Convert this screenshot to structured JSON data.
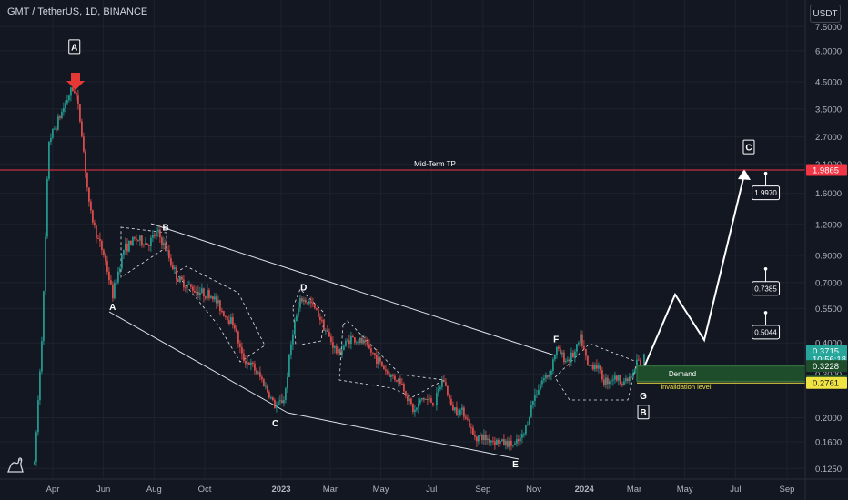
{
  "header": {
    "symbol_title": "GMT / TetherUS, 1D, BINANCE",
    "currency": "USDT"
  },
  "colors": {
    "background": "#131722",
    "up_candle": "#26a69a",
    "down_candle": "#ef5350",
    "grid": "#1e222d",
    "axis_text": "#b2b5be",
    "tp_line": "#f23645",
    "white": "#ffffff",
    "demand_zone": "#1e4d2b",
    "invalidation": "#f0e442"
  },
  "chart_data": {
    "type": "candlestick",
    "price_scale": "log",
    "ylim": [
      0.12,
      8.5
    ],
    "y_ticks": [
      "7.5000",
      "6.0000",
      "4.5000",
      "3.5000",
      "2.7000",
      "2.1000",
      "1.6000",
      "1.2000",
      "0.9000",
      "0.7000",
      "0.5500",
      "0.4000",
      "0.3000",
      "0.2000",
      "0.1600",
      "0.1250"
    ],
    "x_ticks": [
      "Apr",
      "Jun",
      "Aug",
      "Oct",
      "2023",
      "Mar",
      "May",
      "Jul",
      "Sep",
      "Nov",
      "2024",
      "Mar",
      "May",
      "Jul",
      "Sep"
    ],
    "price_path": [
      {
        "date": "2022-03-10",
        "price": 0.13
      },
      {
        "date": "2022-03-20",
        "price": 0.5
      },
      {
        "date": "2022-03-27",
        "price": 2.6
      },
      {
        "date": "2022-04-05",
        "price": 3.0
      },
      {
        "date": "2022-04-15",
        "price": 3.6
      },
      {
        "date": "2022-04-22",
        "price": 4.1
      },
      {
        "date": "2022-04-28",
        "price": 4.2
      },
      {
        "date": "2022-05-05",
        "price": 3.0
      },
      {
        "date": "2022-05-15",
        "price": 1.4
      },
      {
        "date": "2022-05-25",
        "price": 1.05
      },
      {
        "date": "2022-06-02",
        "price": 0.9
      },
      {
        "date": "2022-06-12",
        "price": 0.62
      },
      {
        "date": "2022-06-25",
        "price": 0.95
      },
      {
        "date": "2022-07-10",
        "price": 1.05
      },
      {
        "date": "2022-07-25",
        "price": 1.0
      },
      {
        "date": "2022-08-05",
        "price": 1.12
      },
      {
        "date": "2022-08-15",
        "price": 0.95
      },
      {
        "date": "2022-08-30",
        "price": 0.72
      },
      {
        "date": "2022-09-20",
        "price": 0.65
      },
      {
        "date": "2022-10-10",
        "price": 0.62
      },
      {
        "date": "2022-10-25",
        "price": 0.52
      },
      {
        "date": "2022-11-05",
        "price": 0.48
      },
      {
        "date": "2022-11-15",
        "price": 0.35
      },
      {
        "date": "2022-11-28",
        "price": 0.32
      },
      {
        "date": "2022-12-10",
        "price": 0.28
      },
      {
        "date": "2022-12-25",
        "price": 0.22
      },
      {
        "date": "2023-01-05",
        "price": 0.24
      },
      {
        "date": "2023-01-15",
        "price": 0.45
      },
      {
        "date": "2023-01-25",
        "price": 0.6
      },
      {
        "date": "2023-02-05",
        "price": 0.58
      },
      {
        "date": "2023-02-15",
        "price": 0.52
      },
      {
        "date": "2023-02-25",
        "price": 0.44
      },
      {
        "date": "2023-03-10",
        "price": 0.36
      },
      {
        "date": "2023-03-25",
        "price": 0.42
      },
      {
        "date": "2023-04-10",
        "price": 0.4
      },
      {
        "date": "2023-04-25",
        "price": 0.35
      },
      {
        "date": "2023-05-10",
        "price": 0.3
      },
      {
        "date": "2023-05-25",
        "price": 0.28
      },
      {
        "date": "2023-06-10",
        "price": 0.21
      },
      {
        "date": "2023-06-20",
        "price": 0.24
      },
      {
        "date": "2023-07-05",
        "price": 0.23
      },
      {
        "date": "2023-07-15",
        "price": 0.29
      },
      {
        "date": "2023-07-25",
        "price": 0.22
      },
      {
        "date": "2023-08-10",
        "price": 0.21
      },
      {
        "date": "2023-08-20",
        "price": 0.17
      },
      {
        "date": "2023-09-05",
        "price": 0.165
      },
      {
        "date": "2023-09-20",
        "price": 0.16
      },
      {
        "date": "2023-10-10",
        "price": 0.155
      },
      {
        "date": "2023-10-20",
        "price": 0.17
      },
      {
        "date": "2023-11-01",
        "price": 0.24
      },
      {
        "date": "2023-11-10",
        "price": 0.28
      },
      {
        "date": "2023-11-20",
        "price": 0.3
      },
      {
        "date": "2023-11-28",
        "price": 0.38
      },
      {
        "date": "2023-12-10",
        "price": 0.34
      },
      {
        "date": "2023-12-20",
        "price": 0.36
      },
      {
        "date": "2023-12-28",
        "price": 0.42
      },
      {
        "date": "2024-01-05",
        "price": 0.32
      },
      {
        "date": "2024-01-15",
        "price": 0.33
      },
      {
        "date": "2024-01-25",
        "price": 0.28
      },
      {
        "date": "2024-02-05",
        "price": 0.29
      },
      {
        "date": "2024-02-20",
        "price": 0.28
      },
      {
        "date": "2024-03-01",
        "price": 0.3
      },
      {
        "date": "2024-03-05",
        "price": 0.35
      },
      {
        "date": "2024-03-10",
        "price": 0.3
      },
      {
        "date": "2024-03-14",
        "price": 0.3715
      }
    ],
    "price_labels": [
      {
        "text": "1.9865",
        "price": 1.9865,
        "color": "#f23645"
      },
      {
        "text": "0.3715",
        "price": 0.3715,
        "color": "#26a69a"
      },
      {
        "text": "10:56:18",
        "price": 0.345,
        "color": "#26a69a"
      },
      {
        "text": "0.3228",
        "price": 0.3228,
        "color": "#1e4d2b"
      },
      {
        "text": "0.2804",
        "price": 0.2804,
        "color": "#1e4d2b"
      },
      {
        "text": "0.2761",
        "price": 0.2761,
        "color": "#f0e442"
      }
    ],
    "annotations": {
      "tp_line": {
        "label": "Mid-Term TP",
        "price": 1.9865
      },
      "demand_zone": {
        "label": "Demand",
        "price_top": 0.3228,
        "price_bottom": 0.2804
      },
      "invalidation": {
        "label": "invalidation level",
        "price": 0.2761
      },
      "wave_labels": [
        {
          "text": "A",
          "date": "2022-04-27",
          "price": 6.2,
          "boxed": true
        },
        {
          "text": "A",
          "date": "2022-06-12",
          "price": 0.56,
          "boxed": false
        },
        {
          "text": "B",
          "date": "2022-08-15",
          "price": 1.17,
          "boxed": false
        },
        {
          "text": "C",
          "date": "2022-12-25",
          "price": 0.19,
          "boxed": false
        },
        {
          "text": "D",
          "date": "2023-01-28",
          "price": 0.67,
          "boxed": false
        },
        {
          "text": "E",
          "date": "2023-10-10",
          "price": 0.13,
          "boxed": false
        },
        {
          "text": "F",
          "date": "2023-11-28",
          "price": 0.415,
          "boxed": false
        },
        {
          "text": "G",
          "date": "2024-03-12",
          "price": 0.245,
          "boxed": false
        },
        {
          "text": "B",
          "date": "2024-03-12",
          "price": 0.21,
          "boxed": true
        },
        {
          "text": "C",
          "date": "2024-07-17",
          "price": 2.45,
          "boxed": true
        }
      ],
      "target_boxes": [
        {
          "text": "1.9970",
          "date": "2024-07-22",
          "price": 1.6
        },
        {
          "text": "0.7385",
          "date": "2024-07-22",
          "price": 0.66
        },
        {
          "text": "0.5044",
          "date": "2024-07-22",
          "price": 0.44
        }
      ]
    }
  }
}
